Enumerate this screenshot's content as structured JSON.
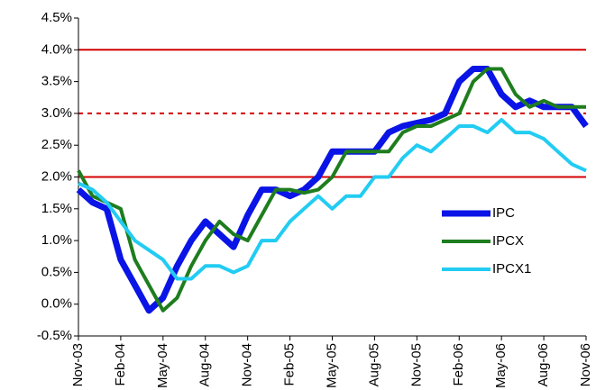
{
  "chart_data": {
    "type": "line",
    "categories": [
      "Nov-03",
      null,
      null,
      "Feb-04",
      null,
      null,
      "May-04",
      null,
      null,
      "Aug-04",
      null,
      null,
      "Nov-04",
      null,
      null,
      "Feb-05",
      null,
      null,
      "May-05",
      null,
      null,
      "Aug-05",
      null,
      null,
      "Nov-05",
      null,
      null,
      "Feb-06",
      null,
      null,
      "May-06",
      null,
      null,
      "Aug-06",
      null,
      null,
      "Nov-06"
    ],
    "series": [
      {
        "name": "IPC",
        "color": "#0a14e6",
        "width": 7,
        "values": [
          1.8,
          1.6,
          1.5,
          0.7,
          0.3,
          -0.1,
          0.1,
          0.6,
          1.0,
          1.3,
          1.1,
          0.9,
          1.4,
          1.8,
          1.8,
          1.7,
          1.8,
          2.0,
          2.4,
          2.4,
          2.4,
          2.4,
          2.7,
          2.8,
          2.85,
          2.9,
          3.0,
          3.5,
          3.7,
          3.7,
          3.3,
          3.1,
          3.2,
          3.1,
          3.1,
          3.1,
          2.8
        ]
      },
      {
        "name": "IPCX",
        "color": "#1e7d1e",
        "width": 4,
        "values": [
          2.1,
          1.7,
          1.6,
          1.5,
          0.7,
          0.3,
          -0.1,
          0.1,
          0.6,
          1.0,
          1.3,
          1.1,
          1.0,
          1.4,
          1.8,
          1.8,
          1.75,
          1.8,
          2.0,
          2.4,
          2.4,
          2.4,
          2.4,
          2.7,
          2.8,
          2.8,
          2.9,
          3.0,
          3.5,
          3.7,
          3.7,
          3.3,
          3.1,
          3.2,
          3.1,
          3.1,
          3.1
        ]
      },
      {
        "name": "IPCX1",
        "color": "#22ccf2",
        "width": 4,
        "values": [
          1.9,
          1.8,
          1.6,
          1.3,
          1.0,
          0.85,
          0.7,
          0.4,
          0.4,
          0.6,
          0.6,
          0.5,
          0.6,
          1.0,
          1.0,
          1.3,
          1.5,
          1.7,
          1.5,
          1.7,
          1.7,
          2.0,
          2.0,
          2.3,
          2.5,
          2.4,
          2.6,
          2.8,
          2.8,
          2.7,
          2.9,
          2.7,
          2.7,
          2.6,
          2.4,
          2.2,
          2.1
        ]
      }
    ],
    "ylim": [
      -0.5,
      4.5
    ],
    "yticks": [
      {
        "value": -0.5,
        "label": "-0.5%"
      },
      {
        "value": 0,
        "label": "0.0%"
      },
      {
        "value": 0.5,
        "label": "0.5%"
      },
      {
        "value": 1,
        "label": "1.0%"
      },
      {
        "value": 1.5,
        "label": "1.5%"
      },
      {
        "value": 2,
        "label": "2.0%"
      },
      {
        "value": 2.5,
        "label": "2.5%"
      },
      {
        "value": 3,
        "label": "3.0%"
      },
      {
        "value": 3.5,
        "label": "3.5%"
      },
      {
        "value": 4,
        "label": "4.0%"
      },
      {
        "value": 4.5,
        "label": "4.5%"
      }
    ],
    "hlines": [
      {
        "value": 4,
        "style": "solid"
      },
      {
        "value": 3,
        "style": "dotted"
      },
      {
        "value": 2,
        "style": "solid"
      }
    ],
    "hline_color": "#d40000"
  }
}
